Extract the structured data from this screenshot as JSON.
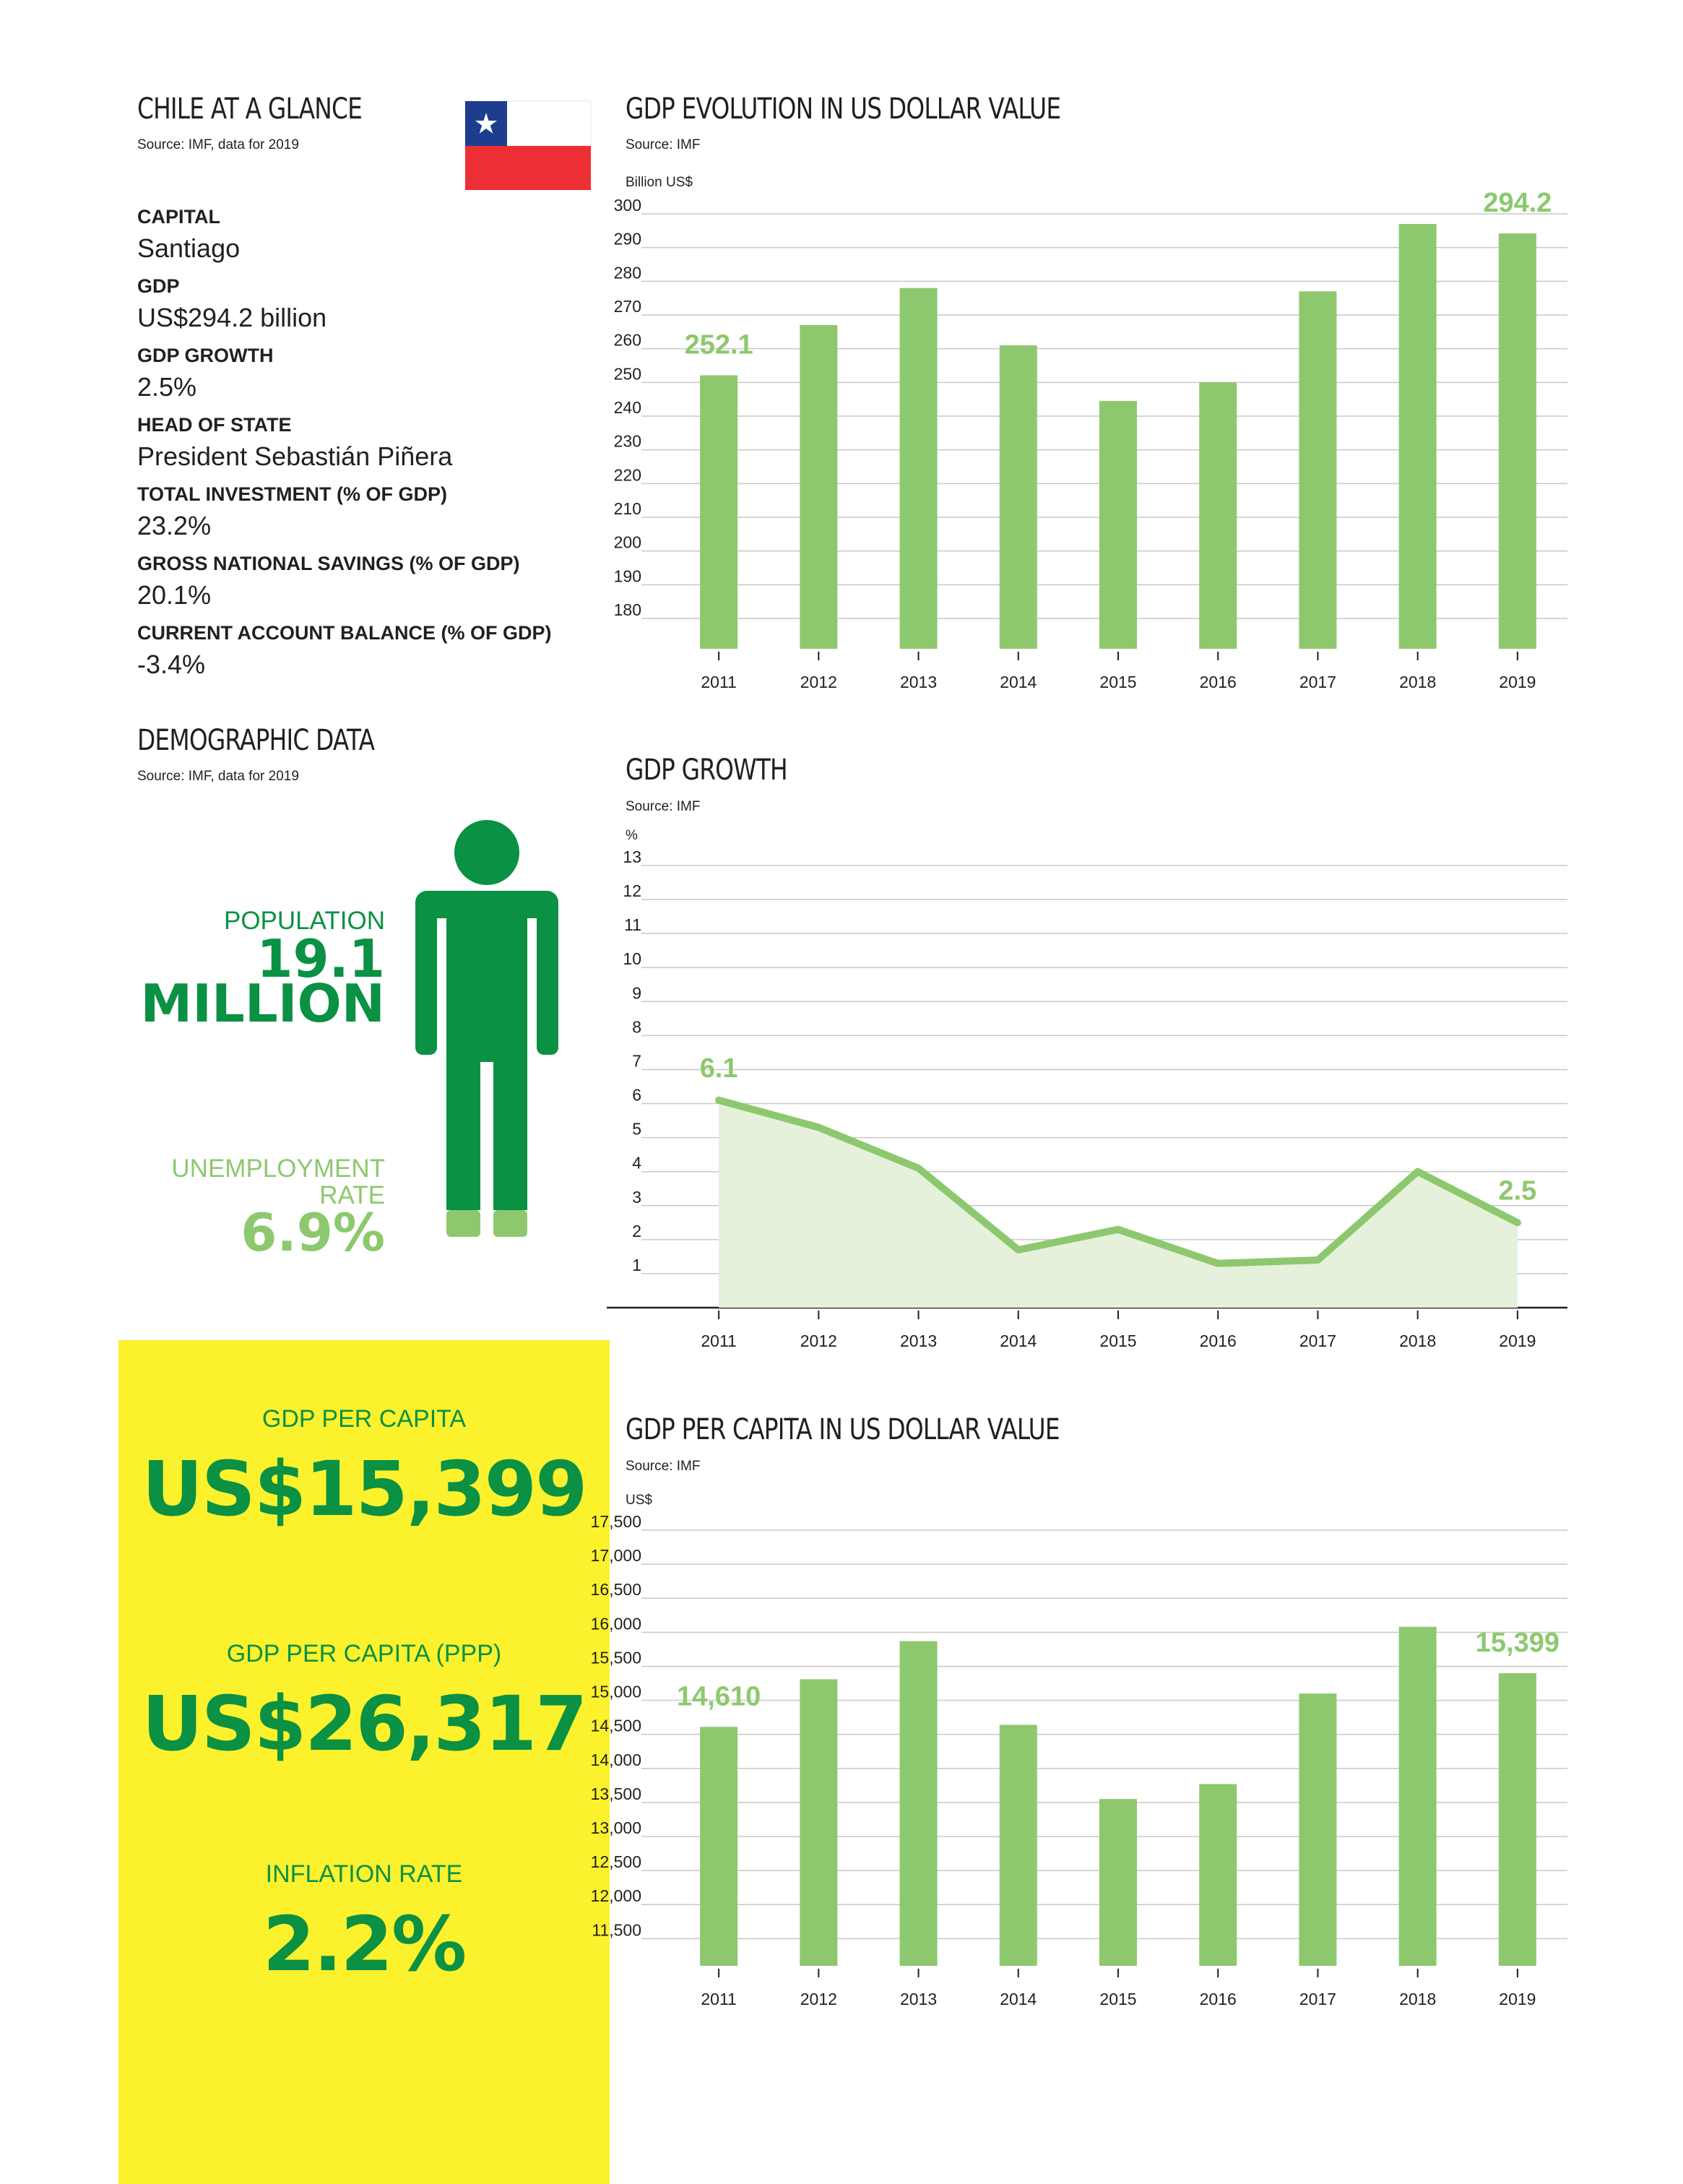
{
  "glance": {
    "title": "CHILE AT A GLANCE",
    "source": "Source: IMF, data for 2019",
    "items": [
      {
        "label": "CAPITAL",
        "value": "Santiago"
      },
      {
        "label": "GDP",
        "value": "US$294.2 billion"
      },
      {
        "label": "GDP GROWTH",
        "value": "2.5%"
      },
      {
        "label": "HEAD OF STATE",
        "value": "President Sebastián Piñera"
      },
      {
        "label": "TOTAL INVESTMENT (% OF GDP)",
        "value": "23.2%"
      },
      {
        "label": "GROSS NATIONAL SAVINGS (% OF GDP)",
        "value": "20.1%"
      },
      {
        "label": "CURRENT ACCOUNT BALANCE (% OF GDP)",
        "value": "-3.4%"
      }
    ]
  },
  "demographic": {
    "title": "DEMOGRAPHIC DATA",
    "source": "Source: IMF, data for 2019",
    "population_label": "POPULATION",
    "population_value_1": "19.1",
    "population_value_2": "MILLION",
    "unemployment_label_1": "UNEMPLOYMENT",
    "unemployment_label_2": "RATE",
    "unemployment_value": "6.9%"
  },
  "kpis": {
    "gdp_pc_label": "GDP PER CAPITA",
    "gdp_pc_value": "US$15,399",
    "gdp_ppp_label": "GDP PER CAPITA (PPP)",
    "gdp_ppp_value": "US$26,317",
    "inflation_label": "INFLATION RATE",
    "inflation_value": "2.2%"
  },
  "colors": {
    "bar": "#8dc86e",
    "dark_green": "#0a9144",
    "yellow": "#fcf12d",
    "area_fill": "#e6f1dc",
    "grid": "#c8c8c8",
    "flag_blue": "#1e3d8f",
    "flag_red": "#ee2e35"
  },
  "chart_data": [
    {
      "id": "gdp",
      "type": "bar",
      "title": "GDP EVOLUTION IN US DOLLAR VALUE",
      "source": "Source: IMF",
      "ylabel": "Billion US$",
      "categories": [
        "2011",
        "2012",
        "2013",
        "2014",
        "2015",
        "2016",
        "2017",
        "2018",
        "2019"
      ],
      "values": [
        252.1,
        267,
        278,
        261,
        244.5,
        250,
        277,
        297,
        294.2
      ],
      "ylim": [
        171,
        300
      ],
      "yticks": [
        180,
        190,
        200,
        210,
        220,
        230,
        240,
        250,
        260,
        270,
        280,
        290,
        300
      ],
      "ytick_labels": [
        "180",
        "190",
        "200",
        "210",
        "220",
        "230",
        "240",
        "250",
        "260",
        "270",
        "280",
        "290",
        "300"
      ],
      "annotations": [
        {
          "index": 0,
          "text": "252.1"
        },
        {
          "index": 8,
          "text": "294.2"
        }
      ],
      "grid": true
    },
    {
      "id": "growth",
      "type": "area",
      "title": "GDP GROWTH",
      "source": "Source: IMF",
      "ylabel": "%",
      "categories": [
        "2011",
        "2012",
        "2013",
        "2014",
        "2015",
        "2016",
        "2017",
        "2018",
        "2019"
      ],
      "values": [
        6.1,
        5.3,
        4.1,
        1.7,
        2.3,
        1.3,
        1.4,
        4.0,
        2.5
      ],
      "ylim": [
        0,
        13
      ],
      "yticks": [
        1,
        2,
        3,
        4,
        5,
        6,
        7,
        8,
        9,
        10,
        11,
        12,
        13
      ],
      "ytick_labels": [
        "1",
        "2",
        "3",
        "4",
        "5",
        "6",
        "7",
        "8",
        "9",
        "10",
        "11",
        "12",
        "13"
      ],
      "annotations": [
        {
          "index": 0,
          "text": "6.1"
        },
        {
          "index": 8,
          "text": "2.5"
        }
      ],
      "grid": true
    },
    {
      "id": "gdppc",
      "type": "bar",
      "title": "GDP PER CAPITA IN US DOLLAR VALUE",
      "source": "Source: IMF",
      "ylabel": "US$",
      "categories": [
        "2011",
        "2012",
        "2013",
        "2014",
        "2015",
        "2016",
        "2017",
        "2018",
        "2019"
      ],
      "values": [
        14610,
        15310,
        15870,
        14640,
        13550,
        13770,
        15100,
        16080,
        15399
      ],
      "ylim": [
        11100,
        17500
      ],
      "yticks": [
        11500,
        12000,
        12500,
        13000,
        13500,
        14000,
        14500,
        15000,
        15500,
        16000,
        16500,
        17000,
        17500
      ],
      "ytick_labels": [
        "11,500",
        "12,000",
        "12,500",
        "13,000",
        "13,500",
        "14,000",
        "14,500",
        "15,000",
        "15,500",
        "16,000",
        "16,500",
        "17,000",
        "17,500"
      ],
      "annotations": [
        {
          "index": 0,
          "text": "14,610"
        },
        {
          "index": 8,
          "text": "15,399"
        }
      ],
      "grid": true
    }
  ]
}
